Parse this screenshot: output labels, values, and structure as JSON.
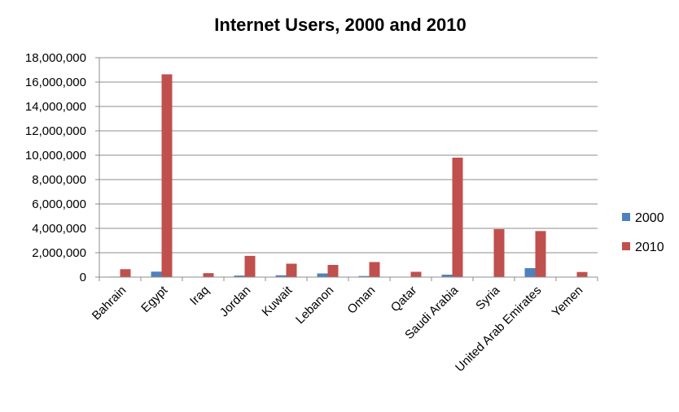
{
  "chart_data": {
    "type": "bar",
    "title": "Internet Users, 2000 and 2010",
    "xlabel": "",
    "ylabel": "",
    "categories": [
      "Bahrain",
      "Egypt",
      "Iraq",
      "Jordan",
      "Kuwait",
      "Lebanon",
      "Oman",
      "Qatar",
      "Saudi Arabia",
      "Syria",
      "United Arab Emirates",
      "Yemen"
    ],
    "series": [
      {
        "name": "2000",
        "color": "#4f81bd",
        "values": [
          40000,
          450000,
          12500,
          127300,
          150000,
          300000,
          90000,
          30000,
          200000,
          30000,
          735000,
          15000
        ]
      },
      {
        "name": "2010",
        "color": "#c0504d",
        "values": [
          649300,
          16636000,
          325000,
          1741900,
          1100000,
          1000000,
          1236700,
          436000,
          9800000,
          3935000,
          3777900,
          420000
        ]
      }
    ],
    "ylim": [
      0,
      18000000
    ],
    "yticks": [
      "0",
      "2,000,000",
      "4,000,000",
      "6,000,000",
      "8,000,000",
      "10,000,000",
      "12,000,000",
      "14,000,000",
      "16,000,000",
      "18,000,000"
    ],
    "grid": true,
    "legend_position": "right"
  }
}
